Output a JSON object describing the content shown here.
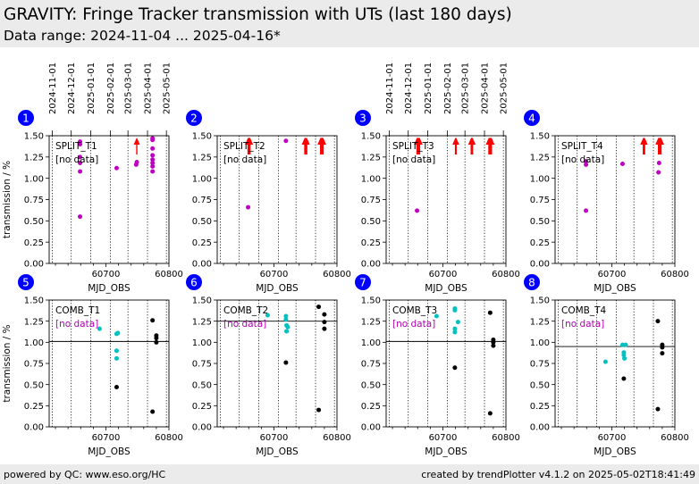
{
  "header": {
    "title": "GRAVITY: Fringe Tracker transmission with UTs (last 180 days)",
    "subtitle": "Data range: 2024-11-04 ... 2025-04-16*"
  },
  "footer": {
    "left": "powered by QC: www.eso.org/HC",
    "right": "created by trendPlotter v4.1.2 on 2025-05-02T18:41:49"
  },
  "colors": {
    "split_point": "#c000c0",
    "comb_recent": "#00c0c0",
    "comb_old": "#000000",
    "arrow": "#ff0000",
    "no_data_split": "#000000",
    "no_data_comb": "#b000b0",
    "badge": "#0000ff"
  },
  "chart_data": {
    "type": "scatter",
    "x_label": "MJD_OBS",
    "y_label": "transmission / %",
    "xlim": [
      60610,
      60800
    ],
    "ylim": [
      0,
      1.5
    ],
    "x_ticks": [
      60700,
      60800
    ],
    "y_ticks": [
      "0.00",
      "0.25",
      "0.50",
      "0.75",
      "1.00",
      "1.25",
      "1.50"
    ],
    "date_labels": [
      {
        "label": "2024-11-01",
        "mjd": 60615
      },
      {
        "label": "2024-12-01",
        "mjd": 60645
      },
      {
        "label": "2025-01-01",
        "mjd": 60676
      },
      {
        "label": "2025-02-01",
        "mjd": 60707
      },
      {
        "label": "2025-03-01",
        "mjd": 60735
      },
      {
        "label": "2025-04-01",
        "mjd": 60766
      },
      {
        "label": "2025-05-01",
        "mjd": 60796
      }
    ],
    "no_data_label": "[no data]",
    "panels": [
      {
        "badge": "1",
        "name": "SPLIT_T1",
        "kind": "split",
        "points": [
          [
            60659,
            1.43
          ],
          [
            60659,
            1.4
          ],
          [
            60659,
            1.25
          ],
          [
            60659,
            1.18
          ],
          [
            60659,
            1.08
          ],
          [
            60659,
            0.55
          ],
          [
            60717,
            1.12
          ],
          [
            60748,
            1.16
          ],
          [
            60749,
            1.19
          ],
          [
            60774,
            1.47
          ],
          [
            60774,
            1.45
          ],
          [
            60774,
            1.35
          ],
          [
            60774,
            1.27
          ],
          [
            60774,
            1.22
          ],
          [
            60774,
            1.18
          ],
          [
            60774,
            1.14
          ],
          [
            60774,
            1.08
          ]
        ],
        "arrows": [
          60749
        ],
        "ref": null
      },
      {
        "badge": "2",
        "name": "SPLIT_T2",
        "kind": "split",
        "points": [
          [
            60659,
            0.66
          ],
          [
            60719,
            1.44
          ]
        ],
        "arrows": [
          60659,
          60660,
          60661,
          60662,
          60749,
          60750,
          60751,
          60752,
          60774,
          60775,
          60776,
          60777,
          60778
        ],
        "ref": null
      },
      {
        "badge": "3",
        "name": "SPLIT_T3",
        "kind": "split",
        "points": [
          [
            60659,
            0.62
          ]
        ],
        "arrows": [
          60659,
          60660,
          60661,
          60662,
          60663,
          60720,
          60721,
          60745,
          60746,
          60747,
          60773,
          60774,
          60775,
          60776,
          60777
        ],
        "ref": null
      },
      {
        "badge": "4",
        "name": "SPLIT_T4",
        "kind": "split",
        "points": [
          [
            60659,
            0.62
          ],
          [
            60659,
            1.16
          ],
          [
            60659,
            1.2
          ],
          [
            60717,
            1.17
          ],
          [
            60774,
            1.07
          ],
          [
            60775,
            1.18
          ]
        ],
        "arrows": [
          60750,
          60751,
          60752,
          60774,
          60775,
          60776,
          60777,
          60778
        ],
        "ref": null
      },
      {
        "badge": "5",
        "name": "COMB_T1",
        "kind": "comb",
        "recent": [
          [
            60690,
            1.16
          ],
          [
            60717,
            0.81
          ],
          [
            60717,
            0.9
          ],
          [
            60717,
            1.1
          ],
          [
            60719,
            1.11
          ]
        ],
        "old": [
          [
            60717,
            0.47
          ],
          [
            60774,
            1.26
          ],
          [
            60774,
            0.18
          ],
          [
            60780,
            1.08
          ],
          [
            60780,
            1.05
          ],
          [
            60780,
            1.0
          ]
        ],
        "ref": 1.01
      },
      {
        "badge": "6",
        "name": "COMB_T2",
        "kind": "comb",
        "recent": [
          [
            60690,
            1.32
          ],
          [
            60719,
            1.31
          ],
          [
            60719,
            1.27
          ],
          [
            60720,
            1.2
          ],
          [
            60720,
            1.13
          ],
          [
            60722,
            1.18
          ]
        ],
        "old": [
          [
            60719,
            0.76
          ],
          [
            60771,
            1.42
          ],
          [
            60771,
            0.2
          ],
          [
            60780,
            1.33
          ],
          [
            60780,
            1.24
          ],
          [
            60780,
            1.16
          ]
        ],
        "ref": 1.25
      },
      {
        "badge": "7",
        "name": "COMB_T3",
        "kind": "comb",
        "recent": [
          [
            60690,
            1.31
          ],
          [
            60719,
            1.4
          ],
          [
            60719,
            1.38
          ],
          [
            60719,
            1.16
          ],
          [
            60719,
            1.12
          ],
          [
            60724,
            1.24
          ]
        ],
        "old": [
          [
            60719,
            0.7
          ],
          [
            60775,
            1.35
          ],
          [
            60775,
            0.16
          ],
          [
            60780,
            1.03
          ],
          [
            60780,
            1.0
          ],
          [
            60780,
            0.96
          ]
        ],
        "ref": 1.01
      },
      {
        "badge": "8",
        "name": "COMB_T4",
        "kind": "comb",
        "recent": [
          [
            60690,
            0.77
          ],
          [
            60717,
            0.97
          ],
          [
            60719,
            0.88
          ],
          [
            60719,
            0.85
          ],
          [
            60720,
            0.81
          ],
          [
            60722,
            0.97
          ]
        ],
        "old": [
          [
            60719,
            0.57
          ],
          [
            60773,
            1.25
          ],
          [
            60773,
            0.21
          ],
          [
            60780,
            0.97
          ],
          [
            60780,
            0.94
          ],
          [
            60780,
            0.87
          ]
        ],
        "ref": 0.95
      }
    ]
  }
}
